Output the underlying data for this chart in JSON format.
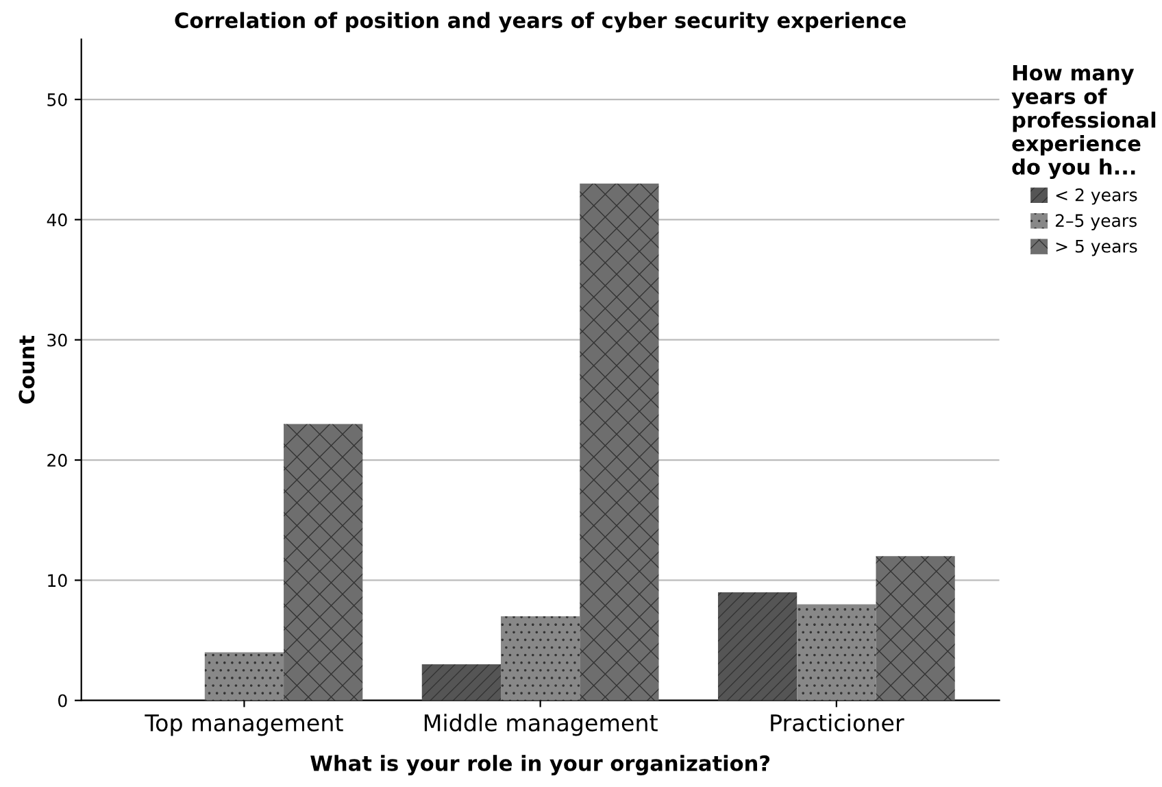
{
  "chart_data": {
    "type": "bar",
    "title": "Correlation of position and years of cyber security experience",
    "xlabel": "What is your role in your organization?",
    "ylabel": "Count",
    "legend_title": "How many\nyears of\nprofessional\nexperience\ndo you h...",
    "categories": [
      "Top management",
      "Middle management",
      "Practicioner"
    ],
    "series": [
      {
        "name": "< 2 years",
        "color": "#555555",
        "values": [
          0,
          3,
          9
        ]
      },
      {
        "name": "2–5 years",
        "color": "#888888",
        "values": [
          4,
          7,
          8
        ]
      },
      {
        "name": "> 5 years",
        "color": "#6e6e6e",
        "values": [
          23,
          43,
          12
        ]
      }
    ],
    "ylim": [
      0,
      55
    ],
    "yticks": [
      0,
      10,
      20,
      30,
      40,
      50
    ],
    "grid": "y",
    "legend": "right"
  }
}
